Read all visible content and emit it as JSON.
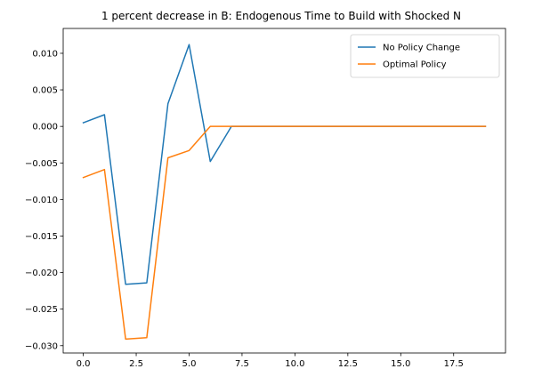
{
  "chart_data": {
    "type": "line",
    "title": "1 percent decrease in B: Endogenous Time to Build with Shocked N",
    "xlabel": "",
    "ylabel": "",
    "xlim": [
      -0.95,
      19.95
    ],
    "ylim": [
      -0.031,
      0.0134
    ],
    "xticks": [
      0.0,
      2.5,
      5.0,
      7.5,
      10.0,
      12.5,
      15.0,
      17.5
    ],
    "xtick_labels": [
      "0.0",
      "2.5",
      "5.0",
      "7.5",
      "10.0",
      "12.5",
      "15.0",
      "17.5"
    ],
    "yticks": [
      0.01,
      0.005,
      0.0,
      -0.005,
      -0.01,
      -0.015,
      -0.02,
      -0.025,
      -0.03
    ],
    "ytick_labels": [
      "0.010",
      "0.005",
      "0.000",
      "−0.005",
      "−0.010",
      "−0.015",
      "−0.020",
      "−0.025",
      "−0.030"
    ],
    "grid": false,
    "legend_position": "top-right",
    "x": [
      0,
      1,
      2,
      3,
      4,
      5,
      6,
      7,
      8,
      9,
      10,
      11,
      12,
      13,
      14,
      15,
      16,
      17,
      18,
      19
    ],
    "series": [
      {
        "name": "No Policy Change",
        "color": "#1f77b4",
        "values": [
          0.0005,
          0.0016,
          -0.0216,
          -0.0214,
          0.0031,
          0.0112,
          -0.0048,
          0.0,
          0.0,
          0.0,
          0.0,
          0.0,
          0.0,
          0.0,
          0.0,
          0.0,
          0.0,
          0.0,
          0.0,
          0.0
        ]
      },
      {
        "name": "Optimal Policy",
        "color": "#ff7f0e",
        "values": [
          -0.007,
          -0.0059,
          -0.0291,
          -0.0289,
          -0.0043,
          -0.0033,
          0.0,
          0.0,
          0.0,
          0.0,
          0.0,
          0.0,
          0.0,
          0.0,
          0.0,
          0.0,
          0.0,
          0.0,
          0.0,
          0.0
        ]
      }
    ]
  }
}
